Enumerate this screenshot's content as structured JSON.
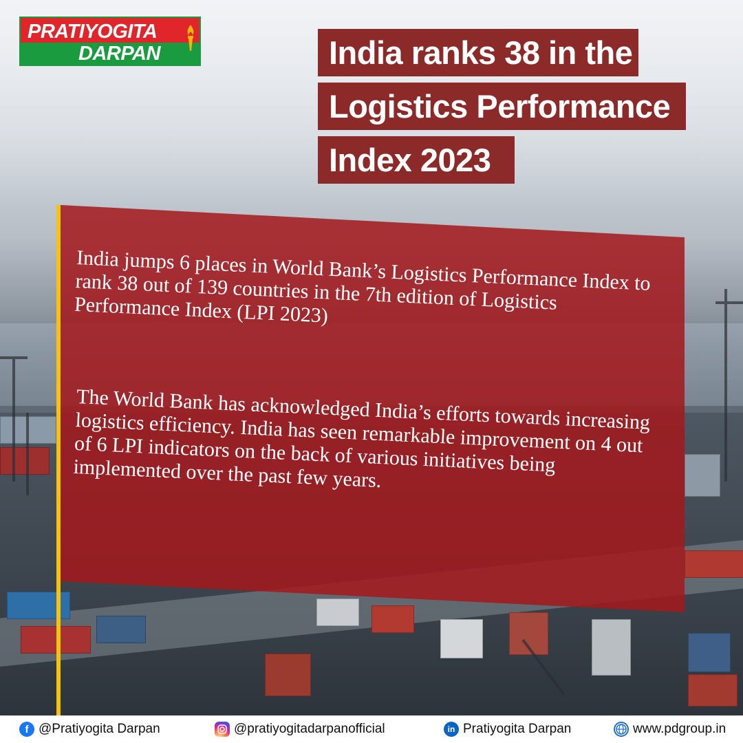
{
  "logo": {
    "line1": "PRATIYOGITA",
    "line2": "DARPAN"
  },
  "headline": {
    "lines": [
      "India ranks 38 in the",
      "Logistics Performance",
      "Index 2023"
    ]
  },
  "card": {
    "paragraph1": "India jumps 6 places in World Bank’s Logistics Performance Index to rank 38 out of 139 countries in the 7th edition of Logistics Performance Index (LPI 2023)",
    "paragraph2": "The World Bank has acknowledged India’s efforts towards increasing logistics efficiency. India has seen remarkable improvement on 4 out of 6 LPI indicators on the back of various initiatives being implemented over the past few years."
  },
  "footer": {
    "facebook": "@Pratiyogita Darpan",
    "instagram": "@pratiyogitadarpanofficial",
    "linkedin": "Pratiyogita Darpan",
    "website": "www.pdgroup.in"
  },
  "colors": {
    "headline_bg": "#8c2a2a",
    "card_bg": "#a3191c",
    "accent_bar": "#f2c215"
  }
}
